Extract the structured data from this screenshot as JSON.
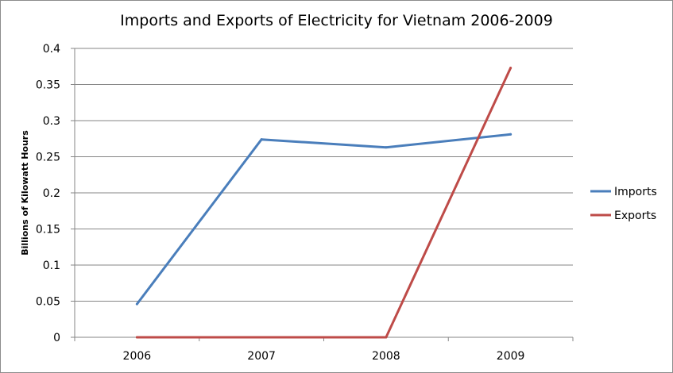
{
  "chart_data": {
    "type": "line",
    "title": "Imports and Exports of Electricity for Vietnam 2006-2009",
    "xlabel": "",
    "ylabel": "Billions of Kilowatt Hours",
    "categories": [
      "2006",
      "2007",
      "2008",
      "2009"
    ],
    "ylim": [
      0,
      0.4
    ],
    "yticks": [
      "0",
      "0.05",
      "0.1",
      "0.15",
      "0.2",
      "0.25",
      "0.3",
      "0.35",
      "0.4"
    ],
    "grid": true,
    "legend": "right",
    "series": [
      {
        "name": "Imports",
        "color": "#4a7ebb",
        "values": [
          0.046,
          0.274,
          0.263,
          0.281
        ]
      },
      {
        "name": "Exports",
        "color": "#be4b48",
        "values": [
          0.0,
          0.0,
          0.0,
          0.373
        ]
      }
    ]
  }
}
